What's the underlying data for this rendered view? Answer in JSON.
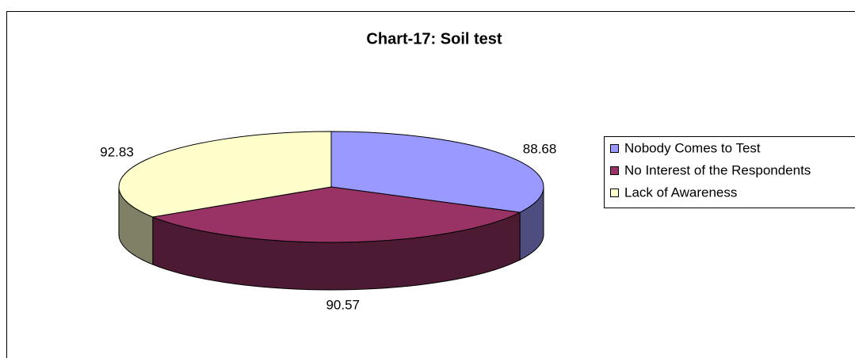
{
  "chart_data": {
    "type": "pie",
    "title": "Chart-17: Soil test",
    "categories": [
      "Nobody Comes to Test",
      "No Interest of the Respondents",
      "Lack of Awareness"
    ],
    "values": [
      88.68,
      90.57,
      92.83
    ],
    "colors": [
      "#9999ff",
      "#993366",
      "#ffffcc"
    ],
    "legend": "right"
  }
}
